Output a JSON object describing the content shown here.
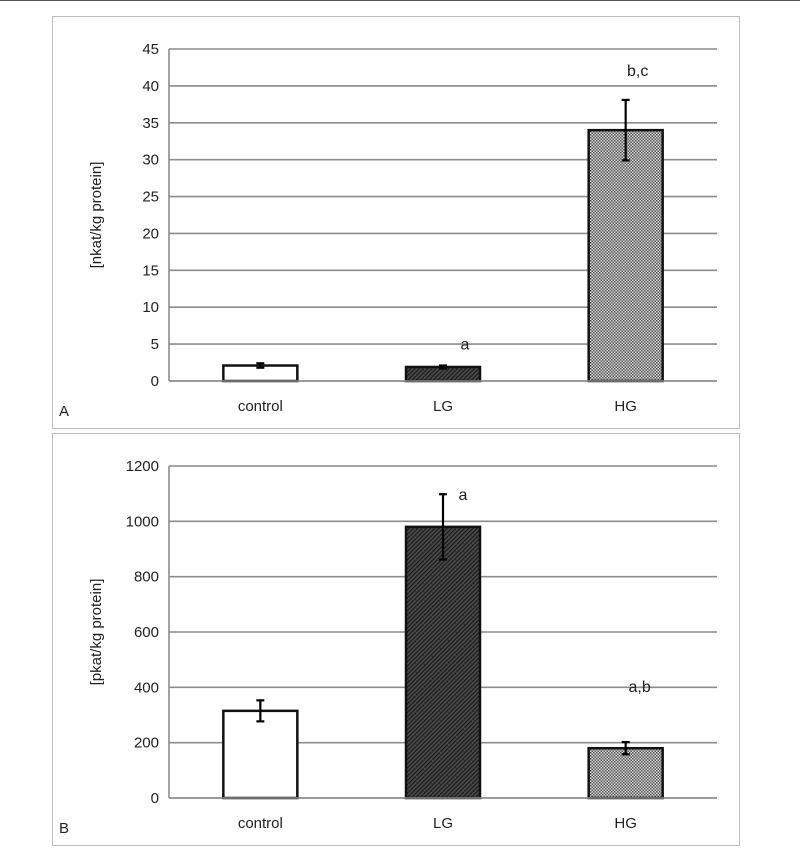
{
  "chart_data": [
    {
      "type": "bar",
      "panel_label": "A",
      "categories": [
        "control",
        "LG",
        "HG"
      ],
      "values": [
        2.1,
        1.9,
        34.0
      ],
      "errors": [
        0.3,
        0.2,
        4.1
      ],
      "annotations": [
        "",
        "a",
        "b,c"
      ],
      "ylabel": "[nkat/kg protein]",
      "xlabel": "",
      "ylim": [
        0,
        45
      ],
      "yticks": [
        0,
        5,
        10,
        15,
        20,
        25,
        30,
        35,
        40,
        45
      ],
      "grid": true,
      "fills": [
        "white",
        "dark-hatch",
        "checker"
      ]
    },
    {
      "type": "bar",
      "panel_label": "B",
      "categories": [
        "control",
        "LG",
        "HG"
      ],
      "values": [
        315,
        980,
        180
      ],
      "errors": [
        38,
        118,
        22
      ],
      "annotations": [
        "",
        "a",
        "a,b"
      ],
      "ylabel": "[pkat/kg protein]",
      "xlabel": "",
      "ylim": [
        0,
        1200
      ],
      "yticks": [
        0,
        200,
        400,
        600,
        800,
        1000,
        1200
      ],
      "grid": true,
      "fills": [
        "white",
        "dark-hatch",
        "checker"
      ]
    }
  ]
}
